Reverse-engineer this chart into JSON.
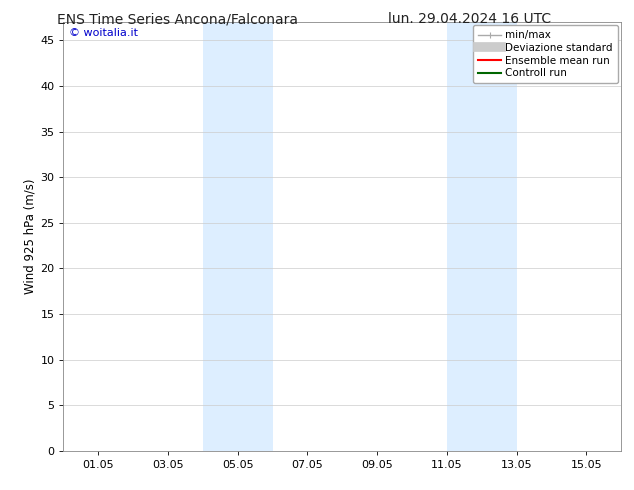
{
  "title_left": "ENS Time Series Ancona/Falconara",
  "title_right": "lun. 29.04.2024 16 UTC",
  "ylabel": "Wind 925 hPa (m/s)",
  "watermark": "© woitalia.it",
  "watermark_color": "#0000cc",
  "ylim": [
    0,
    47
  ],
  "yticks": [
    0,
    5,
    10,
    15,
    20,
    25,
    30,
    35,
    40,
    45
  ],
  "xtick_labels": [
    "01.05",
    "03.05",
    "05.05",
    "07.05",
    "09.05",
    "11.05",
    "13.05",
    "15.05"
  ],
  "xtick_positions": [
    1,
    3,
    5,
    7,
    9,
    11,
    13,
    15
  ],
  "xmin": 0,
  "xmax": 16,
  "shaded_regions": [
    {
      "xmin": 4.0,
      "xmax": 6.0,
      "color": "#ddeeff"
    },
    {
      "xmin": 11.0,
      "xmax": 13.0,
      "color": "#ddeeff"
    }
  ],
  "legend_items": [
    {
      "label": "min/max",
      "color": "#aaaaaa",
      "lw": 1.0
    },
    {
      "label": "Deviazione standard",
      "color": "#cccccc",
      "lw": 7
    },
    {
      "label": "Ensemble mean run",
      "color": "#ff0000",
      "lw": 1.5
    },
    {
      "label": "Controll run",
      "color": "#006600",
      "lw": 1.5
    }
  ],
  "bg_color": "#ffffff",
  "grid_color": "#cccccc",
  "title_fontsize": 10,
  "tick_fontsize": 8,
  "ylabel_fontsize": 8.5,
  "watermark_fontsize": 8,
  "legend_fontsize": 7.5
}
